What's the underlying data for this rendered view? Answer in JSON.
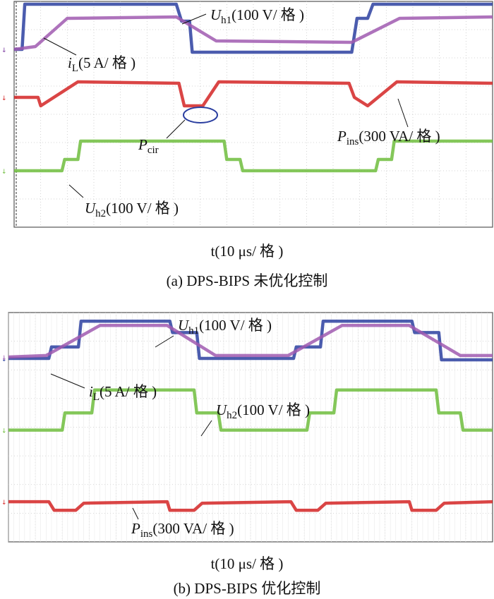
{
  "chart_data": [
    {
      "type": "line",
      "title": "(a) DPS-BIPS 未优化控制",
      "xlabel": "t(10 μs/ 格 )",
      "grid": true,
      "annotations": [
        {
          "text": "U",
          "sub": "h1",
          "rest": "(100 V/ 格 )"
        },
        {
          "text": "i",
          "sub": "L",
          "rest": "(5 A/ 格 )"
        },
        {
          "text": "P",
          "sub": "cir",
          "rest": ""
        },
        {
          "text": "P",
          "sub": "ins",
          "rest": "(300 VA/ 格 )"
        },
        {
          "text": "U",
          "sub": "h2",
          "rest": "(100 V/ 格 )"
        }
      ],
      "series": [
        {
          "name": "Uh1",
          "color": "#2b3fa0",
          "points": [
            [
              0,
              6.3
            ],
            [
              0.3,
              6.3
            ],
            [
              0.4,
              7.9
            ],
            [
              6.1,
              7.9
            ],
            [
              6.3,
              7.3
            ],
            [
              6.6,
              7.3
            ],
            [
              6.7,
              6.2
            ],
            [
              12.7,
              6.2
            ],
            [
              12.9,
              7.4
            ],
            [
              13.3,
              7.4
            ],
            [
              13.5,
              7.9
            ],
            [
              18.0,
              7.9
            ]
          ]
        },
        {
          "name": "iL",
          "color": "#a05bb0",
          "points": [
            [
              0,
              6.3
            ],
            [
              0.8,
              6.4
            ],
            [
              2.0,
              7.4
            ],
            [
              6.1,
              7.45
            ],
            [
              7.6,
              6.6
            ],
            [
              12.7,
              6.55
            ],
            [
              14.5,
              7.4
            ],
            [
              18.0,
              7.45
            ]
          ]
        },
        {
          "name": "Pins",
          "color": "#d42424",
          "points": [
            [
              0,
              4.6
            ],
            [
              0.9,
              4.6
            ],
            [
              1.0,
              4.3
            ],
            [
              2.4,
              5.15
            ],
            [
              6.2,
              5.1
            ],
            [
              6.4,
              4.3
            ],
            [
              7.1,
              4.3
            ],
            [
              7.7,
              5.15
            ],
            [
              12.6,
              5.1
            ],
            [
              12.8,
              4.6
            ],
            [
              13.3,
              4.3
            ],
            [
              14.4,
              5.15
            ],
            [
              18.0,
              5.1
            ]
          ]
        },
        {
          "name": "Uh2",
          "color": "#6ebd3d",
          "points": [
            [
              0,
              2.0
            ],
            [
              1.8,
              2.0
            ],
            [
              1.9,
              2.4
            ],
            [
              2.4,
              2.4
            ],
            [
              2.5,
              3.05
            ],
            [
              7.9,
              3.05
            ],
            [
              8.0,
              2.4
            ],
            [
              8.5,
              2.4
            ],
            [
              8.6,
              2.0
            ],
            [
              13.6,
              2.0
            ],
            [
              13.7,
              2.4
            ],
            [
              14.2,
              2.4
            ],
            [
              14.3,
              3.05
            ],
            [
              18.0,
              3.05
            ]
          ]
        }
      ]
    },
    {
      "type": "line",
      "title": "(b) DPS-BIPS 优化控制",
      "xlabel": "t(10 μs/ 格 )",
      "grid": true,
      "annotations": [
        {
          "text": "U",
          "sub": "h1",
          "rest": "(100 V/ 格 )"
        },
        {
          "text": "i",
          "sub": "L",
          "rest": "(5 A/ 格 )"
        },
        {
          "text": "U",
          "sub": "h2",
          "rest": "(100 V/ 格 )"
        },
        {
          "text": "P",
          "sub": "ins",
          "rest": "(300 VA/ 格 )"
        }
      ],
      "series": [
        {
          "name": "Uh1",
          "color": "#2b3fa0",
          "points": [
            [
              0,
              6.4
            ],
            [
              1.5,
              6.4
            ],
            [
              1.6,
              6.8
            ],
            [
              2.6,
              6.8
            ],
            [
              2.7,
              7.7
            ],
            [
              6.0,
              7.7
            ],
            [
              6.1,
              7.3
            ],
            [
              7.0,
              7.3
            ],
            [
              7.1,
              6.4
            ],
            [
              10.6,
              6.4
            ],
            [
              10.7,
              6.8
            ],
            [
              11.6,
              6.8
            ],
            [
              11.7,
              7.7
            ],
            [
              15.0,
              7.7
            ],
            [
              15.1,
              7.3
            ],
            [
              16.0,
              7.3
            ],
            [
              16.1,
              6.35
            ],
            [
              18.0,
              6.35
            ]
          ]
        },
        {
          "name": "iL",
          "color": "#a05bb0",
          "points": [
            [
              0,
              6.45
            ],
            [
              1.4,
              6.5
            ],
            [
              3.4,
              7.55
            ],
            [
              5.9,
              7.55
            ],
            [
              7.7,
              6.5
            ],
            [
              10.4,
              6.5
            ],
            [
              12.4,
              7.55
            ],
            [
              14.9,
              7.55
            ],
            [
              16.8,
              6.5
            ],
            [
              18.0,
              6.5
            ]
          ]
        },
        {
          "name": "Uh2",
          "color": "#6ebd3d",
          "points": [
            [
              0,
              3.9
            ],
            [
              2.0,
              3.9
            ],
            [
              2.1,
              4.5
            ],
            [
              3.1,
              4.5
            ],
            [
              3.2,
              5.3
            ],
            [
              6.9,
              5.3
            ],
            [
              7.0,
              4.5
            ],
            [
              7.8,
              4.5
            ],
            [
              7.9,
              3.9
            ],
            [
              11.1,
              3.9
            ],
            [
              11.2,
              4.5
            ],
            [
              12.1,
              4.5
            ],
            [
              12.2,
              5.3
            ],
            [
              15.9,
              5.3
            ],
            [
              16.0,
              4.5
            ],
            [
              16.8,
              4.5
            ],
            [
              16.9,
              3.9
            ],
            [
              18.0,
              3.9
            ]
          ]
        },
        {
          "name": "Pins",
          "color": "#d42424",
          "points": [
            [
              0,
              1.4
            ],
            [
              1.5,
              1.4
            ],
            [
              1.7,
              1.1
            ],
            [
              2.5,
              1.1
            ],
            [
              2.8,
              1.35
            ],
            [
              5.9,
              1.4
            ],
            [
              6.0,
              1.1
            ],
            [
              6.9,
              1.1
            ],
            [
              7.2,
              1.35
            ],
            [
              10.5,
              1.4
            ],
            [
              10.7,
              1.1
            ],
            [
              11.5,
              1.1
            ],
            [
              11.8,
              1.35
            ],
            [
              14.9,
              1.4
            ],
            [
              15.0,
              1.1
            ],
            [
              15.9,
              1.1
            ],
            [
              16.2,
              1.35
            ],
            [
              18.0,
              1.4
            ]
          ]
        }
      ]
    }
  ]
}
